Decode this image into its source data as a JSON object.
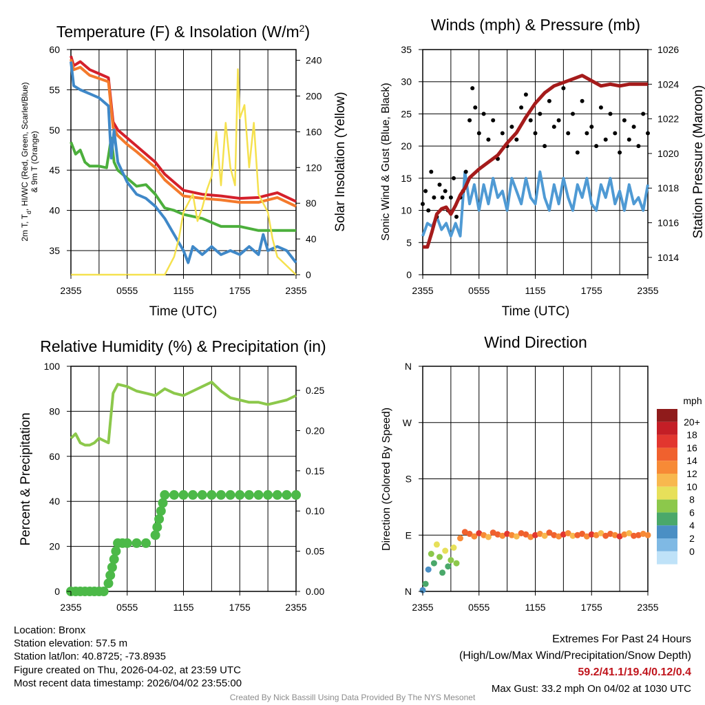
{
  "colors": {
    "red": "#d4202b",
    "orange": "#f47a2c",
    "green": "#4caf3c",
    "blue": "#3f88c8",
    "yellow": "#f5e14e",
    "wind_blue": "#4f9ad4",
    "maroon": "#a51b1b",
    "rh_green": "#8cc84b",
    "precip_green": "#4cb948"
  },
  "x_ticks": [
    "2355",
    "0555",
    "1155",
    "1755",
    "2355"
  ],
  "chart_data": [
    {
      "id": "temperature",
      "type": "line",
      "title_main": "Temperature (F) & Insolation (W/m",
      "title_sup": "2",
      "title_close": ")",
      "ylabel_line1": "2m T, T",
      "ylabel_sub": "d",
      "ylabel_line1_rest": ", HI/WC (Red, Green, Scarlet/Blue)",
      "ylabel_line2": "& 9m T (Orange)",
      "y2label": "Solar Insolation (Yellow)",
      "xlabel": "Time (UTC)",
      "ylim": [
        32,
        60
      ],
      "y_ticks": [
        35,
        40,
        45,
        50,
        55,
        60
      ],
      "y2lim": [
        0,
        252
      ],
      "y2_ticks": [
        0,
        40,
        80,
        120,
        160,
        200,
        240
      ],
      "series": [
        {
          "name": "2m Temperature",
          "color": "red",
          "x": [
            0,
            0.3,
            1,
            2,
            3,
            4,
            4.5,
            5,
            6,
            7,
            8,
            9,
            10,
            12,
            14,
            16,
            18,
            20,
            22,
            24
          ],
          "y": [
            59.2,
            58,
            58.5,
            57.5,
            57,
            56.5,
            51,
            50,
            49,
            48,
            47,
            46,
            44.5,
            42.5,
            42,
            41.8,
            41.5,
            41.6,
            42.2,
            41.1
          ]
        },
        {
          "name": "9m Temperature",
          "color": "orange",
          "x": [
            0,
            0.3,
            1,
            2,
            3,
            4,
            4.5,
            5,
            6,
            7,
            8,
            9,
            10,
            12,
            14,
            16,
            18,
            20,
            22,
            24
          ],
          "y": [
            58.8,
            57.5,
            57.8,
            56.8,
            56.4,
            56,
            50.3,
            49.3,
            48.2,
            47.3,
            46.3,
            45.3,
            43.8,
            41.8,
            41.5,
            41.3,
            41,
            41,
            41.6,
            40.5
          ]
        },
        {
          "name": "Dew Point",
          "color": "green",
          "x": [
            0,
            0.5,
            1,
            1.5,
            2,
            3,
            3.8,
            4.3,
            4.6,
            5,
            6,
            7,
            8,
            9,
            10,
            11,
            12,
            14,
            16,
            18,
            20,
            22,
            24
          ],
          "y": [
            48.5,
            47,
            47.5,
            46,
            45.5,
            45.5,
            45.3,
            49,
            46,
            45,
            44,
            43,
            43.2,
            42,
            40.3,
            40,
            39.5,
            39,
            38,
            38,
            37.5,
            37.5,
            37.5
          ]
        },
        {
          "name": "Heat Index / Wind Chill",
          "color": "blue",
          "x": [
            0,
            0.3,
            1,
            2,
            3,
            4,
            4.3,
            4.6,
            5,
            6,
            7,
            8,
            9,
            10,
            11,
            12,
            12.5,
            13,
            14,
            15,
            16,
            17,
            18,
            19,
            20,
            20.5,
            21,
            22,
            23,
            24
          ],
          "y": [
            58.5,
            55.5,
            55,
            54.5,
            54,
            53,
            46.5,
            50,
            46,
            43.5,
            42,
            41.5,
            40.5,
            39,
            37,
            35,
            33.5,
            35.5,
            34.5,
            35.5,
            34.5,
            35,
            34.5,
            35.5,
            34.5,
            37,
            35,
            35.5,
            35,
            33.5
          ]
        },
        {
          "name": "Solar Insolation",
          "color": "yellow",
          "axis": "right",
          "x": [
            0,
            10,
            11,
            11.5,
            12,
            12.5,
            13,
            13.5,
            14,
            14.5,
            15,
            15.5,
            16,
            16.5,
            17,
            17.5,
            17.8,
            18,
            18.5,
            19,
            19.5,
            20,
            20.5,
            21,
            21.5,
            22,
            23,
            24
          ],
          "y": [
            0,
            0,
            20,
            40,
            70,
            80,
            90,
            60,
            75,
            95,
            110,
            160,
            100,
            170,
            120,
            100,
            230,
            175,
            190,
            120,
            170,
            90,
            80,
            70,
            40,
            20,
            10,
            0
          ]
        }
      ]
    },
    {
      "id": "winds",
      "type": "line",
      "title": "Winds (mph) & Pressure (mb)",
      "ylabel": "Sonic Wind & Gust (Blue, Black)",
      "y2label": "Station Pressure (Maroon)",
      "xlabel": "Time (UTC)",
      "ylim": [
        0,
        35
      ],
      "y_ticks": [
        0,
        5,
        10,
        15,
        20,
        25,
        30,
        35
      ],
      "y2lim": [
        1013,
        1026
      ],
      "y2_ticks": [
        1014,
        1016,
        1018,
        1020,
        1022,
        1024,
        1026
      ],
      "series": [
        {
          "name": "Sonic Wind",
          "color": "wind_blue",
          "x": [
            0,
            0.5,
            1,
            1.5,
            2,
            2.5,
            3,
            3.5,
            4,
            4.5,
            5,
            5.5,
            6,
            6.5,
            7,
            7.5,
            8,
            8.5,
            9,
            9.5,
            10,
            10.5,
            11,
            11.5,
            12,
            12.5,
            13,
            13.5,
            14,
            14.5,
            15,
            15.5,
            16,
            16.5,
            17,
            17.5,
            18,
            18.5,
            19,
            19.5,
            20,
            20.5,
            21,
            21.5,
            22,
            22.5,
            23,
            23.5,
            24
          ],
          "y": [
            6,
            8,
            7.5,
            9,
            7,
            8,
            6,
            8,
            6,
            16,
            11,
            14,
            10,
            14,
            11,
            15,
            12,
            13,
            10,
            15,
            13,
            11,
            15,
            12,
            11,
            16,
            12,
            10,
            14,
            11,
            15,
            12,
            10,
            14,
            12,
            15,
            11,
            10,
            14,
            12,
            15,
            11,
            13,
            10,
            14,
            11,
            12,
            10,
            14
          ]
        },
        {
          "name": "Gust",
          "color": "black",
          "style": "dots",
          "x": [
            0,
            0.3,
            0.6,
            0.9,
            1.2,
            1.5,
            1.8,
            2.1,
            2.4,
            2.7,
            3,
            3.3,
            3.6,
            4,
            4.3,
            4.6,
            5,
            5.3,
            5.6,
            6,
            6.5,
            7,
            7.5,
            8,
            8.5,
            9,
            9.5,
            10,
            10.5,
            11,
            11.5,
            12,
            12.5,
            13,
            13.5,
            14,
            14.5,
            15,
            15.5,
            16,
            16.5,
            17,
            17.5,
            18,
            18.5,
            19,
            19.5,
            20,
            20.5,
            21,
            21.5,
            22,
            22.5,
            23,
            23.5,
            24
          ],
          "y": [
            11,
            13,
            10,
            16,
            12,
            9,
            14,
            12,
            13,
            10,
            12,
            15,
            9,
            12,
            13,
            16,
            24,
            29,
            26,
            22,
            25,
            21,
            24,
            18,
            22,
            20,
            23,
            21,
            26,
            28,
            24,
            22,
            25,
            20,
            27,
            23,
            24,
            29,
            22,
            25,
            19,
            27,
            22,
            23,
            20,
            26,
            21,
            25,
            22,
            19,
            24,
            21,
            23,
            20,
            25,
            22
          ]
        },
        {
          "name": "Station Pressure",
          "color": "maroon",
          "axis": "right",
          "x": [
            0,
            0.5,
            1,
            1.5,
            2,
            2.5,
            3,
            3.5,
            4,
            4.5,
            5,
            6,
            7,
            8,
            9,
            10,
            11,
            12,
            13,
            14,
            15,
            16,
            17,
            18,
            19,
            20,
            21,
            22,
            23,
            24
          ],
          "y": [
            1014.6,
            1014.6,
            1015.5,
            1016.5,
            1016.8,
            1016.9,
            1016.5,
            1017.0,
            1017.6,
            1018.0,
            1018.6,
            1019.1,
            1019.5,
            1019.9,
            1020.6,
            1021.2,
            1022.1,
            1022.9,
            1023.5,
            1023.9,
            1024.1,
            1024.3,
            1024.5,
            1024.2,
            1023.9,
            1024.0,
            1023.9,
            1024.0,
            1024.0,
            1024.0
          ]
        }
      ]
    },
    {
      "id": "humidity",
      "type": "line",
      "title": "Relative Humidity (%) & Precipitation (in)",
      "ylabel": "Percent & Precipitation",
      "ylim": [
        0,
        100
      ],
      "y_ticks": [
        0,
        20,
        40,
        60,
        80,
        100
      ],
      "y2lim": [
        0,
        0.28
      ],
      "y2_ticks": [
        "0.00",
        "0.05",
        "0.10",
        "0.15",
        "0.20",
        "0.25"
      ],
      "series": [
        {
          "name": "Relative Humidity",
          "color": "rh_green",
          "x": [
            0,
            0.5,
            1,
            1.5,
            2,
            2.5,
            3,
            3.5,
            4,
            4.2,
            4.5,
            5,
            6,
            7,
            8,
            9,
            10,
            11,
            12,
            13,
            14,
            15,
            16,
            17,
            18,
            19,
            20,
            21,
            22,
            23,
            24
          ],
          "y": [
            68,
            70,
            66,
            65,
            65,
            66,
            68,
            67,
            66,
            75,
            88,
            92,
            91,
            89,
            88,
            87,
            90,
            88,
            87,
            89,
            91,
            93,
            89,
            86,
            85,
            84,
            84,
            83,
            84,
            85,
            87
          ]
        },
        {
          "name": "Precipitation",
          "color": "precip_green",
          "style": "dots",
          "axis": "right",
          "x": [
            0,
            0.5,
            1,
            1.5,
            2,
            2.5,
            3,
            3.5,
            4,
            4.2,
            4.4,
            4.6,
            4.8,
            5,
            5.5,
            6,
            7,
            8,
            9,
            9.2,
            9.4,
            9.6,
            9.8,
            10,
            11,
            12,
            13,
            14,
            15,
            16,
            17,
            18,
            19,
            20,
            21,
            22,
            23,
            24
          ],
          "y": [
            0,
            0,
            0,
            0,
            0,
            0,
            0,
            0,
            0.01,
            0.02,
            0.03,
            0.04,
            0.05,
            0.06,
            0.06,
            0.06,
            0.06,
            0.06,
            0.07,
            0.08,
            0.09,
            0.1,
            0.11,
            0.12,
            0.12,
            0.12,
            0.12,
            0.12,
            0.12,
            0.12,
            0.12,
            0.12,
            0.12,
            0.12,
            0.12,
            0.12,
            0.12,
            0.12
          ]
        }
      ]
    },
    {
      "id": "wind_direction",
      "type": "scatter",
      "title": "Wind Direction",
      "ylabel": "Direction (Colored By Speed)",
      "y_ticks": [
        "N",
        "E",
        "S",
        "W",
        "N"
      ],
      "ylim": [
        0,
        360
      ],
      "legend_title": "mph",
      "legend_labels": [
        "20+",
        "18",
        "16",
        "14",
        "12",
        "10",
        "8",
        "6",
        "4",
        "2",
        "0"
      ],
      "legend_colors": [
        "#8f1b1b",
        "#c41e26",
        "#e2362f",
        "#f0612e",
        "#f78a36",
        "#f8b84e",
        "#e7e05a",
        "#8cc84b",
        "#4aa86a",
        "#4a8fc4",
        "#7fb9e4",
        "#bfe2f8"
      ],
      "series": [
        {
          "name": "Wind Direction",
          "x": [
            0,
            0.3,
            0.6,
            0.9,
            1.2,
            1.5,
            1.8,
            2.1,
            2.4,
            2.7,
            3,
            3.3,
            3.6,
            4,
            4.5,
            5,
            5.5,
            6,
            6.5,
            7,
            7.5,
            8,
            8.5,
            9,
            9.5,
            10,
            10.5,
            11,
            11.5,
            12,
            12.5,
            13,
            13.5,
            14,
            14.5,
            15,
            15.5,
            16,
            16.5,
            17,
            17.5,
            18,
            18.5,
            19,
            19.5,
            20,
            20.5,
            21,
            21.5,
            22,
            22.5,
            23,
            23.5,
            24
          ],
          "y": [
            2,
            12,
            35,
            60,
            45,
            75,
            55,
            30,
            65,
            40,
            50,
            70,
            45,
            85,
            95,
            92,
            88,
            93,
            90,
            87,
            94,
            91,
            89,
            92,
            90,
            88,
            93,
            91,
            87,
            90,
            92,
            89,
            94,
            90,
            88,
            91,
            93,
            89,
            90,
            92,
            88,
            91,
            90,
            93,
            89,
            92,
            90,
            88,
            91,
            93,
            89,
            90,
            92,
            90
          ],
          "speed": [
            3,
            5,
            4,
            8,
            6,
            10,
            7,
            5,
            9,
            6,
            8,
            10,
            7,
            14,
            16,
            15,
            13,
            17,
            14,
            12,
            16,
            15,
            13,
            18,
            14,
            12,
            16,
            15,
            13,
            17,
            14,
            12,
            16,
            15,
            13,
            18,
            14,
            12,
            16,
            15,
            13,
            17,
            14,
            12,
            16,
            15,
            13,
            18,
            14,
            12,
            16,
            15,
            13,
            14
          ]
        }
      ]
    }
  ],
  "info": {
    "location": "Location: Bronx",
    "elevation": "Station elevation: 57.5 m",
    "latlon": "Station lat/lon: 40.8725; -73.8935",
    "created": "Figure created on Thu, 2026-04-02, at 23:59 UTC",
    "recent": "Most recent data timestamp: 2026/04/02 23:55:00"
  },
  "extremes": {
    "title": "Extremes For Past 24 Hours",
    "subtitle": "(High/Low/Max Wind/Precipitation/Snow Depth)",
    "values": "59.2/41.1/19.4/0.12/0.4",
    "gust": "Max Gust: 33.2 mph On 04/02 at 1030 UTC"
  },
  "credit": "Created By Nick Bassill Using Data Provided By The NYS Mesonet"
}
